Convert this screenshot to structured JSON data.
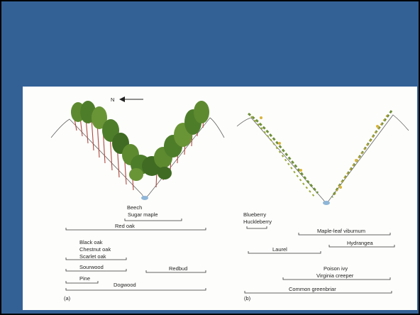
{
  "slide": {
    "background_color": "#336196",
    "figure_background": "#fdfdfb"
  },
  "figure": {
    "north_label": "N",
    "panel_a": {
      "caption": "(a)",
      "species": {
        "beech": "Beech",
        "sugar_maple": "Sugar maple",
        "red_oak": "Red oak",
        "black_oak": "Black oak",
        "chestnut_oak": "Chestnut oak",
        "scarlet_oak": "Scarlet oak",
        "sourwood": "Sourwood",
        "redbud": "Redbud",
        "pine": "Pine",
        "dogwood": "Dogwood"
      }
    },
    "panel_b": {
      "caption": "(b)",
      "species": {
        "blueberry": "Blueberry",
        "huckleberry": "Huckleberry",
        "maple_leaf_viburnum": "Maple-leaf viburnum",
        "laurel": "Laurel",
        "hydrangea": "Hydrangea",
        "poison_ivy": "Poison ivy",
        "virginia_creeper": "Virginia creeper",
        "common_greenbriar": "Common greenbriar"
      }
    },
    "colors": {
      "tree_foliage": "#4e7d2a",
      "trunk": "#b0483e",
      "stream": "#8fb6d8",
      "range_line": "#333333"
    }
  }
}
